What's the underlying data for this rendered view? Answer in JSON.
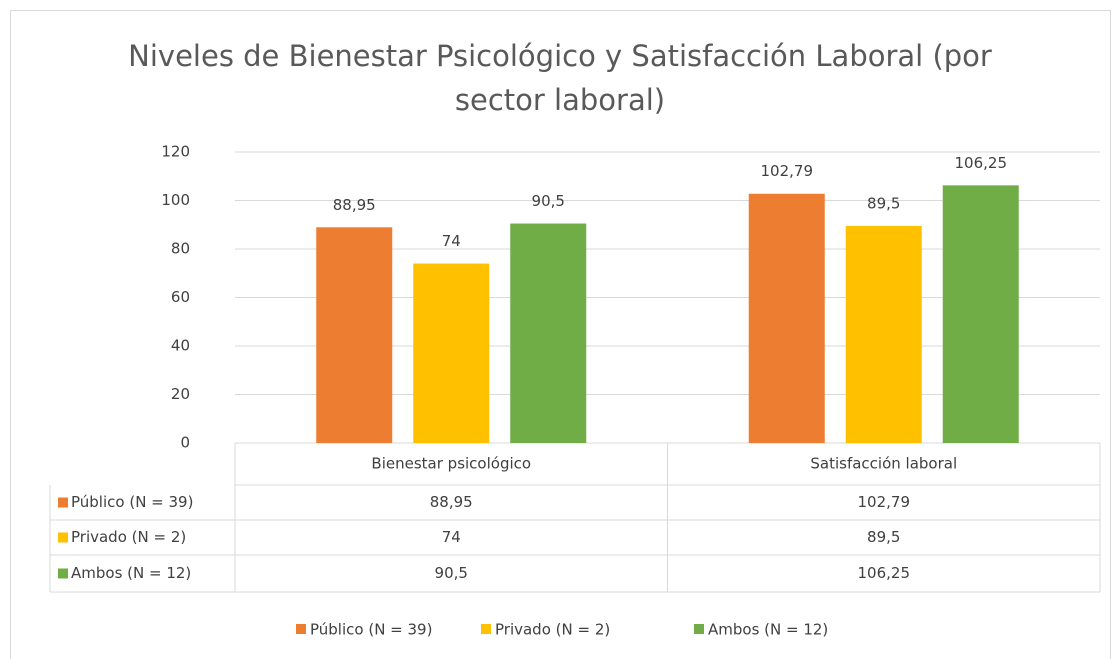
{
  "chart_data": {
    "type": "bar",
    "title": "Niveles de Bienestar Psicológico y Satisfacción Laboral (por sector laboral)",
    "categories": [
      "Bienestar psicológico",
      "Satisfacción laboral"
    ],
    "series": [
      {
        "name": "Público (N = 39)",
        "color": "#ed7d31",
        "values": [
          88.95,
          102.79
        ],
        "value_labels": [
          "88,95",
          "102,79"
        ]
      },
      {
        "name": "Privado (N = 2)",
        "color": "#ffc000",
        "values": [
          74,
          89.5
        ],
        "value_labels": [
          "74",
          "89,5"
        ]
      },
      {
        "name": "Ambos (N = 12)",
        "color": "#70ad47",
        "values": [
          90.5,
          106.25
        ],
        "value_labels": [
          "90,5",
          "106,25"
        ]
      }
    ],
    "ylim": [
      0,
      120
    ],
    "yticks": [
      0,
      20,
      40,
      60,
      80,
      100,
      120
    ],
    "grid": true,
    "legend": "bottom",
    "data_table": true
  }
}
